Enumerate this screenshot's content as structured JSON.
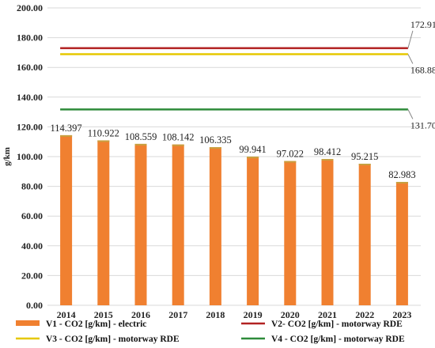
{
  "chart_data": {
    "type": "bar",
    "ylabel": "g/km",
    "ylim": [
      0,
      200
    ],
    "yticks": [
      "0.00",
      "20.00",
      "40.00",
      "60.00",
      "80.00",
      "100.00",
      "120.00",
      "140.00",
      "160.00",
      "180.00",
      "200.00"
    ],
    "grid": true,
    "categories": [
      "2014",
      "2015",
      "2016",
      "2017",
      "2018",
      "2019",
      "2020",
      "2021",
      "2022",
      "2023"
    ],
    "bar_series": {
      "name": "V1 - CO2 [g/km] - electric",
      "color": "#f08030",
      "values": [
        114.397,
        110.922,
        108.559,
        108.142,
        106.335,
        99.941,
        97.022,
        98.412,
        95.215,
        82.983
      ],
      "labels": [
        "114.397",
        "110.922",
        "108.559",
        "108.142",
        "106.335",
        "99.941",
        "97.022",
        "98.412",
        "95.215",
        "82.983"
      ]
    },
    "line_series": [
      {
        "name": "V2- CO2 [g/km] - motorway RDE",
        "color": "#b22222",
        "value": 172.91,
        "label": "172.91"
      },
      {
        "name": "V3 - CO2 [g/km] - motorway RDE",
        "color": "#e6c800",
        "value": 168.88,
        "label": "168.88"
      },
      {
        "name": "V4 - CO2 [g/km] - motorway RDE",
        "color": "#2e8b3a",
        "value": 131.7,
        "label": "131.70"
      }
    ],
    "legend_position": "bottom"
  }
}
